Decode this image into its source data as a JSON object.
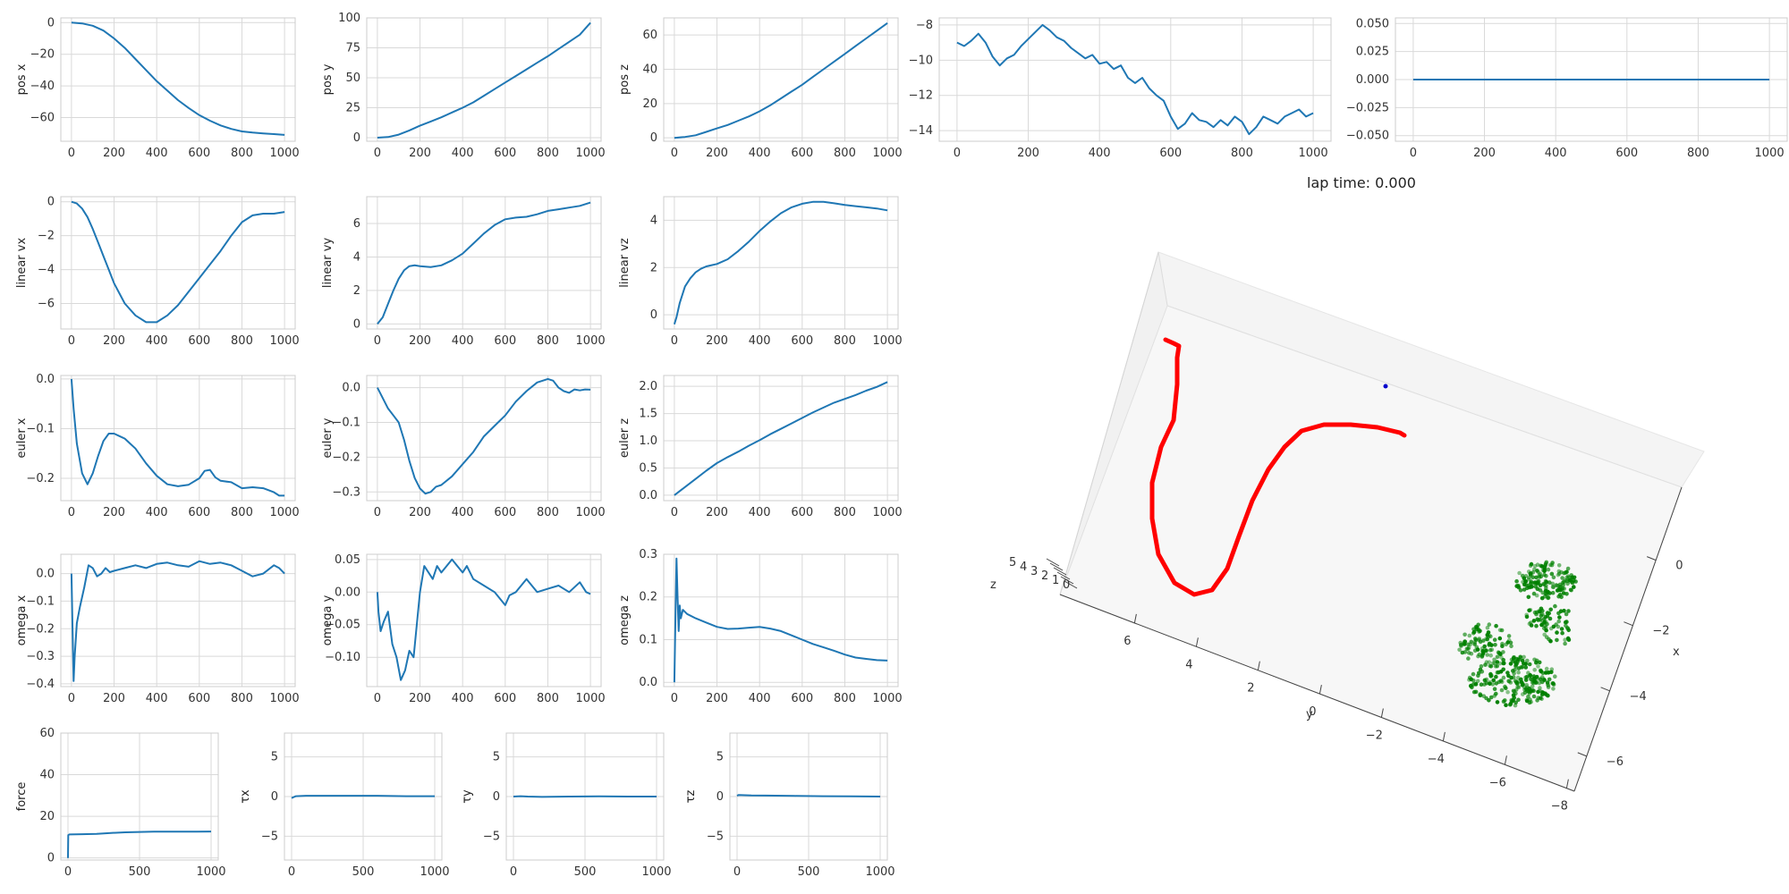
{
  "lap_time_label": "lap time: 0.000",
  "colors": {
    "line": "#1f77b4",
    "grid": "#d9d9d9",
    "frame": "#cccccc",
    "trajectory": "#ff0000",
    "gates": "#008000",
    "target": "#0000cc"
  },
  "chart_data": [
    {
      "id": "posx",
      "type": "line",
      "ylabel": "pos x",
      "xlim": [
        -50,
        1050
      ],
      "ylim": [
        -75,
        3
      ],
      "xticks": [
        0,
        200,
        400,
        600,
        800,
        1000
      ],
      "yticks": [
        0,
        -20,
        -40,
        -60
      ],
      "x": [
        0,
        50,
        100,
        150,
        200,
        250,
        300,
        350,
        400,
        450,
        500,
        550,
        600,
        650,
        700,
        750,
        800,
        850,
        900,
        950,
        1000
      ],
      "y": [
        0,
        -0.5,
        -2,
        -5,
        -10,
        -16,
        -23,
        -30,
        -37,
        -43,
        -49,
        -54,
        -58.5,
        -62,
        -65,
        -67.2,
        -68.8,
        -69.5,
        -70,
        -70.5,
        -71
      ]
    },
    {
      "id": "posy",
      "type": "line",
      "ylabel": "pos y",
      "xlim": [
        -50,
        1050
      ],
      "ylim": [
        -3,
        100
      ],
      "xticks": [
        0,
        200,
        400,
        600,
        800,
        1000
      ],
      "yticks": [
        0,
        25,
        50,
        75,
        100
      ],
      "x": [
        0,
        50,
        100,
        150,
        200,
        250,
        300,
        350,
        400,
        450,
        500,
        550,
        600,
        650,
        700,
        750,
        800,
        850,
        900,
        950,
        1000
      ],
      "y": [
        0,
        0.5,
        2.5,
        6,
        10,
        13.5,
        17,
        21,
        25,
        29.5,
        35,
        40.5,
        46,
        51.5,
        57,
        62.5,
        68,
        74,
        80,
        86,
        96
      ]
    },
    {
      "id": "posz",
      "type": "line",
      "ylabel": "pos z",
      "xlim": [
        -50,
        1050
      ],
      "ylim": [
        -2,
        70
      ],
      "xticks": [
        0,
        200,
        400,
        600,
        800,
        1000
      ],
      "yticks": [
        0,
        20,
        40,
        60
      ],
      "x": [
        0,
        50,
        100,
        150,
        200,
        250,
        300,
        350,
        400,
        450,
        500,
        550,
        600,
        650,
        700,
        750,
        800,
        850,
        900,
        950,
        1000
      ],
      "y": [
        0,
        0.5,
        1.5,
        3.5,
        5.5,
        7.5,
        10,
        12.5,
        15.5,
        19,
        23,
        27,
        31,
        35.5,
        40,
        44.5,
        49,
        53.5,
        58,
        62.5,
        67
      ]
    },
    {
      "id": "noise",
      "type": "line",
      "ylabel": "",
      "xlim": [
        -50,
        1050
      ],
      "ylim": [
        -14.6,
        -7.6
      ],
      "xticks": [
        0,
        200,
        400,
        600,
        800,
        1000
      ],
      "yticks": [
        -8,
        -10,
        -12,
        -14
      ],
      "x": [
        0,
        20,
        40,
        60,
        80,
        100,
        120,
        140,
        160,
        180,
        200,
        220,
        240,
        260,
        280,
        300,
        320,
        340,
        360,
        380,
        400,
        420,
        440,
        460,
        480,
        500,
        520,
        540,
        560,
        580,
        600,
        620,
        640,
        660,
        680,
        700,
        720,
        740,
        760,
        780,
        800,
        820,
        840,
        860,
        880,
        900,
        920,
        940,
        960,
        980,
        1000
      ],
      "y": [
        -9,
        -9.2,
        -8.9,
        -8.5,
        -9,
        -9.8,
        -10.3,
        -9.9,
        -9.7,
        -9.2,
        -8.8,
        -8.4,
        -8,
        -8.3,
        -8.7,
        -8.9,
        -9.3,
        -9.6,
        -9.9,
        -9.7,
        -10.2,
        -10.1,
        -10.5,
        -10.3,
        -11,
        -11.3,
        -11,
        -11.6,
        -12,
        -12.3,
        -13.2,
        -13.9,
        -13.6,
        -13,
        -13.4,
        -13.5,
        -13.8,
        -13.4,
        -13.7,
        -13.2,
        -13.5,
        -14.2,
        -13.8,
        -13.2,
        -13.4,
        -13.6,
        -13.2,
        -13,
        -12.8,
        -13.2,
        -13
      ]
    },
    {
      "id": "flat",
      "type": "line",
      "ylabel": "",
      "xlim": [
        -50,
        1050
      ],
      "ylim": [
        -0.055,
        0.055
      ],
      "xticks": [
        0,
        200,
        400,
        600,
        800,
        1000
      ],
      "yticks": [
        0.05,
        0.025,
        0,
        -0.025,
        -0.05
      ],
      "ytickLabels": [
        "0.050",
        "0.025",
        "0.000",
        "−0.025",
        "−0.050"
      ],
      "x": [
        0,
        1000
      ],
      "y": [
        0,
        0
      ]
    },
    {
      "id": "linvx",
      "type": "line",
      "ylabel": "linear vx",
      "xlim": [
        -50,
        1050
      ],
      "ylim": [
        -7.5,
        0.3
      ],
      "xticks": [
        0,
        200,
        400,
        600,
        800,
        1000
      ],
      "yticks": [
        0,
        -2,
        -4,
        -6
      ],
      "x": [
        0,
        25,
        50,
        75,
        100,
        125,
        150,
        175,
        200,
        250,
        300,
        350,
        400,
        450,
        500,
        550,
        600,
        650,
        700,
        750,
        800,
        850,
        900,
        950,
        1000
      ],
      "y": [
        0,
        -0.1,
        -0.4,
        -0.9,
        -1.6,
        -2.4,
        -3.2,
        -4,
        -4.8,
        -6,
        -6.7,
        -7.1,
        -7.1,
        -6.7,
        -6.1,
        -5.3,
        -4.5,
        -3.7,
        -2.9,
        -2,
        -1.2,
        -0.8,
        -0.7,
        -0.7,
        -0.6
      ]
    },
    {
      "id": "linvy",
      "type": "line",
      "ylabel": "linear vy",
      "xlim": [
        -50,
        1050
      ],
      "ylim": [
        -0.3,
        7.6
      ],
      "xticks": [
        0,
        200,
        400,
        600,
        800,
        1000
      ],
      "yticks": [
        0,
        2,
        4,
        6
      ],
      "x": [
        0,
        25,
        50,
        75,
        100,
        125,
        150,
        175,
        200,
        250,
        300,
        350,
        400,
        450,
        500,
        550,
        600,
        650,
        700,
        750,
        800,
        850,
        900,
        950,
        1000
      ],
      "y": [
        0,
        0.4,
        1.2,
        2,
        2.7,
        3.2,
        3.45,
        3.5,
        3.45,
        3.4,
        3.5,
        3.8,
        4.2,
        4.8,
        5.4,
        5.9,
        6.25,
        6.35,
        6.4,
        6.55,
        6.75,
        6.85,
        6.95,
        7.05,
        7.25
      ]
    },
    {
      "id": "linvz",
      "type": "line",
      "ylabel": "linear vz",
      "xlim": [
        -50,
        1050
      ],
      "ylim": [
        -0.6,
        5
      ],
      "xticks": [
        0,
        200,
        400,
        600,
        800,
        1000
      ],
      "yticks": [
        0,
        2,
        4
      ],
      "x": [
        0,
        10,
        25,
        50,
        75,
        100,
        125,
        150,
        175,
        200,
        250,
        300,
        350,
        400,
        450,
        500,
        550,
        600,
        650,
        700,
        750,
        800,
        850,
        900,
        950,
        1000
      ],
      "y": [
        -0.4,
        -0.1,
        0.5,
        1.2,
        1.55,
        1.8,
        1.95,
        2.05,
        2.1,
        2.15,
        2.35,
        2.7,
        3.1,
        3.55,
        3.95,
        4.3,
        4.55,
        4.7,
        4.78,
        4.78,
        4.72,
        4.65,
        4.6,
        4.55,
        4.5,
        4.42
      ]
    },
    {
      "id": "eulx",
      "type": "line",
      "ylabel": "euler x",
      "xlim": [
        -50,
        1050
      ],
      "ylim": [
        -0.245,
        0.007
      ],
      "xticks": [
        0,
        200,
        400,
        600,
        800,
        1000
      ],
      "yticks": [
        0,
        -0.1,
        -0.2
      ],
      "ytickLabels": [
        "0.0",
        "−0.1",
        "−0.2"
      ],
      "x": [
        0,
        10,
        25,
        50,
        75,
        100,
        125,
        150,
        175,
        200,
        225,
        250,
        275,
        300,
        350,
        400,
        450,
        500,
        550,
        600,
        625,
        650,
        675,
        700,
        750,
        800,
        850,
        900,
        950,
        975,
        1000
      ],
      "y": [
        0,
        -0.06,
        -0.13,
        -0.19,
        -0.212,
        -0.19,
        -0.155,
        -0.125,
        -0.11,
        -0.11,
        -0.115,
        -0.12,
        -0.13,
        -0.14,
        -0.17,
        -0.195,
        -0.212,
        -0.216,
        -0.213,
        -0.2,
        -0.185,
        -0.183,
        -0.198,
        -0.205,
        -0.208,
        -0.22,
        -0.218,
        -0.22,
        -0.228,
        -0.235,
        -0.235
      ]
    },
    {
      "id": "euly",
      "type": "line",
      "ylabel": "euler y",
      "xlim": [
        -50,
        1050
      ],
      "ylim": [
        -0.325,
        0.035
      ],
      "xticks": [
        0,
        200,
        400,
        600,
        800,
        1000
      ],
      "yticks": [
        0,
        -0.1,
        -0.2,
        -0.3
      ],
      "ytickLabels": [
        "0.0",
        "−0.1",
        "−0.2",
        "−0.3"
      ],
      "x": [
        0,
        25,
        50,
        75,
        100,
        125,
        150,
        175,
        200,
        225,
        250,
        275,
        300,
        350,
        400,
        450,
        500,
        550,
        600,
        650,
        700,
        750,
        800,
        825,
        850,
        875,
        900,
        925,
        950,
        975,
        1000
      ],
      "y": [
        0,
        -0.03,
        -0.06,
        -0.08,
        -0.1,
        -0.15,
        -0.21,
        -0.26,
        -0.29,
        -0.305,
        -0.3,
        -0.285,
        -0.28,
        -0.255,
        -0.22,
        -0.185,
        -0.14,
        -0.11,
        -0.08,
        -0.04,
        -0.01,
        0.015,
        0.025,
        0.02,
        0.0,
        -0.01,
        -0.015,
        -0.005,
        -0.008,
        -0.005,
        -0.006
      ]
    },
    {
      "id": "eulz",
      "type": "line",
      "ylabel": "euler z",
      "xlim": [
        -50,
        1050
      ],
      "ylim": [
        -0.1,
        2.2
      ],
      "xticks": [
        0,
        200,
        400,
        600,
        800,
        1000
      ],
      "yticks": [
        0,
        0.5,
        1,
        1.5,
        2
      ],
      "ytickLabels": [
        "0.0",
        "0.5",
        "1.0",
        "1.5",
        "2.0"
      ],
      "x": [
        0,
        50,
        100,
        150,
        200,
        250,
        300,
        350,
        400,
        450,
        500,
        550,
        600,
        650,
        700,
        750,
        800,
        850,
        900,
        950,
        1000
      ],
      "y": [
        0,
        0.15,
        0.3,
        0.45,
        0.59,
        0.7,
        0.8,
        0.91,
        1.01,
        1.12,
        1.22,
        1.32,
        1.42,
        1.52,
        1.61,
        1.7,
        1.77,
        1.84,
        1.92,
        1.99,
        2.08
      ]
    },
    {
      "id": "omx",
      "type": "line",
      "ylabel": "omega x",
      "xlim": [
        -50,
        1050
      ],
      "ylim": [
        -0.41,
        0.07
      ],
      "xticks": [
        0,
        200,
        400,
        600,
        800,
        1000
      ],
      "yticks": [
        0,
        -0.1,
        -0.2,
        -0.3,
        -0.4
      ],
      "ytickLabels": [
        "0.0",
        "−0.1",
        "−0.2",
        "−0.3",
        "−0.4"
      ],
      "x": [
        0,
        5,
        10,
        15,
        25,
        40,
        60,
        80,
        100,
        120,
        140,
        160,
        180,
        200,
        250,
        300,
        350,
        400,
        450,
        500,
        550,
        600,
        650,
        700,
        750,
        800,
        850,
        900,
        950,
        975,
        1000
      ],
      "y": [
        0,
        -0.2,
        -0.39,
        -0.3,
        -0.18,
        -0.12,
        -0.05,
        0.03,
        0.02,
        -0.01,
        0.0,
        0.02,
        0.005,
        0.01,
        0.02,
        0.03,
        0.02,
        0.035,
        0.04,
        0.03,
        0.025,
        0.045,
        0.035,
        0.04,
        0.03,
        0.01,
        -0.01,
        0.0,
        0.03,
        0.02,
        0.0
      ]
    },
    {
      "id": "omy",
      "type": "line",
      "ylabel": "omega y",
      "xlim": [
        -50,
        1050
      ],
      "ylim": [
        -0.145,
        0.058
      ],
      "xticks": [
        0,
        200,
        400,
        600,
        800,
        1000
      ],
      "yticks": [
        0.05,
        0,
        -0.05,
        -0.1
      ],
      "ytickLabels": [
        "0.05",
        "0.00",
        "−0.05",
        "−0.10"
      ],
      "x": [
        0,
        5,
        15,
        30,
        50,
        70,
        90,
        110,
        130,
        150,
        170,
        200,
        220,
        240,
        260,
        280,
        300,
        350,
        400,
        420,
        450,
        500,
        550,
        600,
        620,
        650,
        700,
        750,
        800,
        850,
        900,
        950,
        980,
        1000
      ],
      "y": [
        0,
        -0.03,
        -0.06,
        -0.045,
        -0.03,
        -0.08,
        -0.1,
        -0.135,
        -0.12,
        -0.09,
        -0.1,
        0.0,
        0.04,
        0.03,
        0.02,
        0.04,
        0.03,
        0.05,
        0.03,
        0.04,
        0.02,
        0.01,
        0.0,
        -0.02,
        -0.005,
        0.0,
        0.02,
        0.0,
        0.005,
        0.01,
        0.0,
        0.015,
        0.0,
        -0.003
      ]
    },
    {
      "id": "omz",
      "type": "line",
      "ylabel": "omega z",
      "xlim": [
        -50,
        1050
      ],
      "ylim": [
        -0.01,
        0.3
      ],
      "xticks": [
        0,
        200,
        400,
        600,
        800,
        1000
      ],
      "yticks": [
        0,
        0.1,
        0.2,
        0.3
      ],
      "ytickLabels": [
        "0.0",
        "0.1",
        "0.2",
        "0.3"
      ],
      "x": [
        0,
        5,
        10,
        15,
        20,
        25,
        30,
        40,
        60,
        100,
        150,
        200,
        250,
        300,
        350,
        400,
        450,
        500,
        550,
        600,
        650,
        700,
        750,
        800,
        850,
        900,
        950,
        1000
      ],
      "y": [
        0,
        0.15,
        0.29,
        0.2,
        0.12,
        0.18,
        0.15,
        0.17,
        0.16,
        0.15,
        0.14,
        0.13,
        0.125,
        0.126,
        0.128,
        0.13,
        0.126,
        0.12,
        0.11,
        0.1,
        0.09,
        0.082,
        0.074,
        0.065,
        0.058,
        0.055,
        0.052,
        0.051
      ]
    },
    {
      "id": "force",
      "type": "line",
      "ylabel": "force",
      "xlim": [
        -50,
        1050
      ],
      "ylim": [
        -1,
        60
      ],
      "xticks": [
        0,
        500,
        1000
      ],
      "yticks": [
        0,
        20,
        40,
        60
      ],
      "x": [
        0,
        2,
        10,
        100,
        200,
        300,
        400,
        500,
        600,
        700,
        800,
        900,
        1000
      ],
      "y": [
        0,
        11,
        11.3,
        11.4,
        11.6,
        12,
        12.3,
        12.5,
        12.6,
        12.6,
        12.6,
        12.6,
        12.7
      ]
    },
    {
      "id": "taux",
      "type": "line",
      "ylabel": "τx",
      "xlim": [
        -50,
        1050
      ],
      "ylim": [
        -8,
        8
      ],
      "xticks": [
        0,
        500,
        1000
      ],
      "yticks": [
        5,
        0,
        -5
      ],
      "ytickLabels": [
        "5",
        "0",
        "−5"
      ],
      "x": [
        0,
        10,
        30,
        100,
        200,
        400,
        600,
        800,
        1000
      ],
      "y": [
        -0.2,
        -0.1,
        0.05,
        0.1,
        0.1,
        0.1,
        0.1,
        0.05,
        0.05
      ]
    },
    {
      "id": "tauy",
      "type": "line",
      "ylabel": "τy",
      "xlim": [
        -50,
        1050
      ],
      "ylim": [
        -8,
        8
      ],
      "xticks": [
        0,
        500,
        1000
      ],
      "yticks": [
        5,
        0,
        -5
      ],
      "ytickLabels": [
        "5",
        "0",
        "−5"
      ],
      "x": [
        0,
        50,
        100,
        200,
        400,
        600,
        800,
        1000
      ],
      "y": [
        0,
        0.05,
        0.0,
        -0.05,
        0.0,
        0.02,
        0.0,
        0.0
      ]
    },
    {
      "id": "tauz",
      "type": "line",
      "ylabel": "τz",
      "xlim": [
        -50,
        1050
      ],
      "ylim": [
        -8,
        8
      ],
      "xticks": [
        0,
        500,
        1000
      ],
      "yticks": [
        5,
        0,
        -5
      ],
      "ytickLabels": [
        "5",
        "0",
        "−5"
      ],
      "x": [
        0,
        10,
        100,
        200,
        400,
        600,
        800,
        1000
      ],
      "y": [
        0.1,
        0.2,
        0.15,
        0.12,
        0.08,
        0.05,
        0.02,
        0.0
      ]
    }
  ],
  "plot3d": {
    "type": "scatter3d",
    "xlabel": "x",
    "ylabel": "y",
    "zlabel": "z",
    "x_ticks": [
      "0",
      "−2",
      "−4",
      "−6"
    ],
    "y_ticks": [
      "6",
      "4",
      "2",
      "0",
      "−2",
      "−4",
      "−6",
      "−8"
    ],
    "z_ticks": [
      "5",
      "4",
      "3",
      "2",
      "1",
      "0"
    ]
  }
}
